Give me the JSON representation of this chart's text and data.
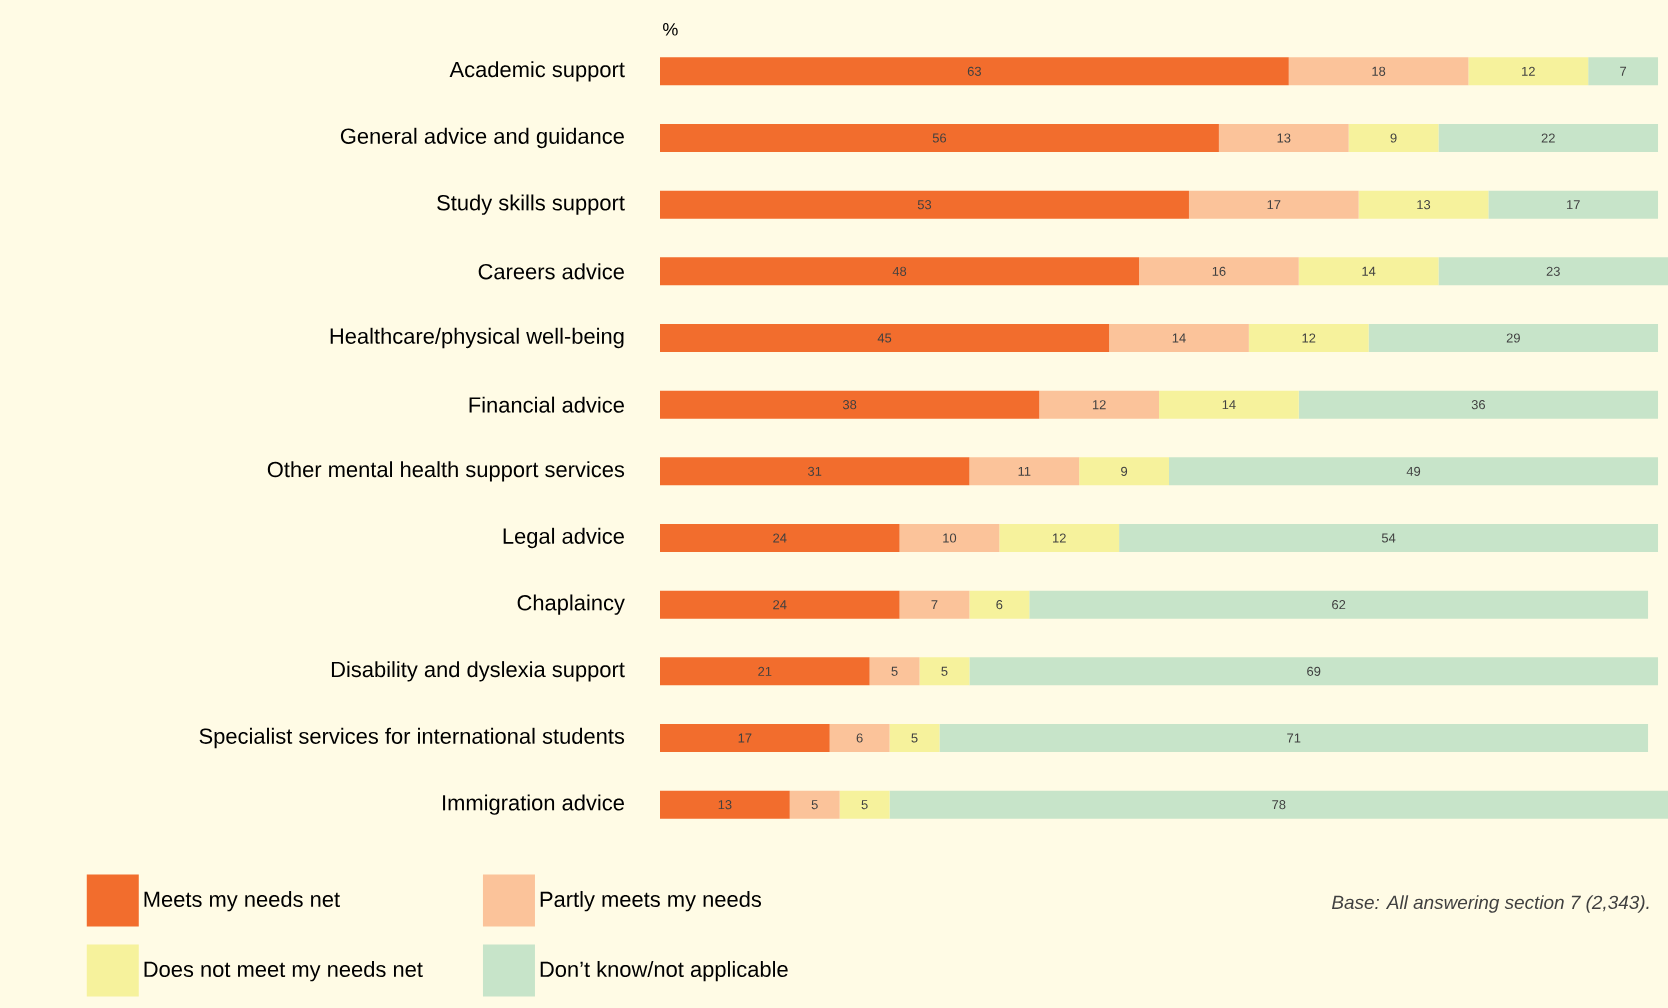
{
  "chart_data": {
    "type": "bar",
    "orientation": "horizontal",
    "stacked": true,
    "data_labels": true,
    "legend": "bottom",
    "xlabel": "%",
    "categories": [
      "Academic support",
      "General advice and guidance",
      "Study skills support",
      "Careers advice",
      "Healthcare/physical well-being",
      "Financial advice",
      "Other mental health support services",
      "Legal advice",
      "Chaplaincy",
      "Disability and dyslexia support",
      "Specialist services for international students",
      "Immigration advice"
    ],
    "series": [
      {
        "name": "Meets my needs net",
        "color": "#f26d2d",
        "values": [
          63,
          56,
          53,
          48,
          45,
          38,
          31,
          24,
          24,
          21,
          17,
          13
        ]
      },
      {
        "name": "Partly meets my needs",
        "color": "#fbc39a",
        "values": [
          18,
          13,
          17,
          16,
          14,
          12,
          11,
          10,
          7,
          5,
          6,
          5
        ]
      },
      {
        "name": "Does not meet my needs net",
        "color": "#f6f29c",
        "values": [
          12,
          9,
          13,
          14,
          12,
          14,
          9,
          12,
          6,
          5,
          5,
          5
        ]
      },
      {
        "name": "Don’t know/not applicable",
        "color": "#c7e4c9",
        "values": [
          7,
          22,
          17,
          23,
          29,
          36,
          49,
          54,
          62,
          69,
          71,
          78
        ]
      }
    ],
    "annotations": [
      "Base: All answering section 7 (2,343)."
    ]
  }
}
